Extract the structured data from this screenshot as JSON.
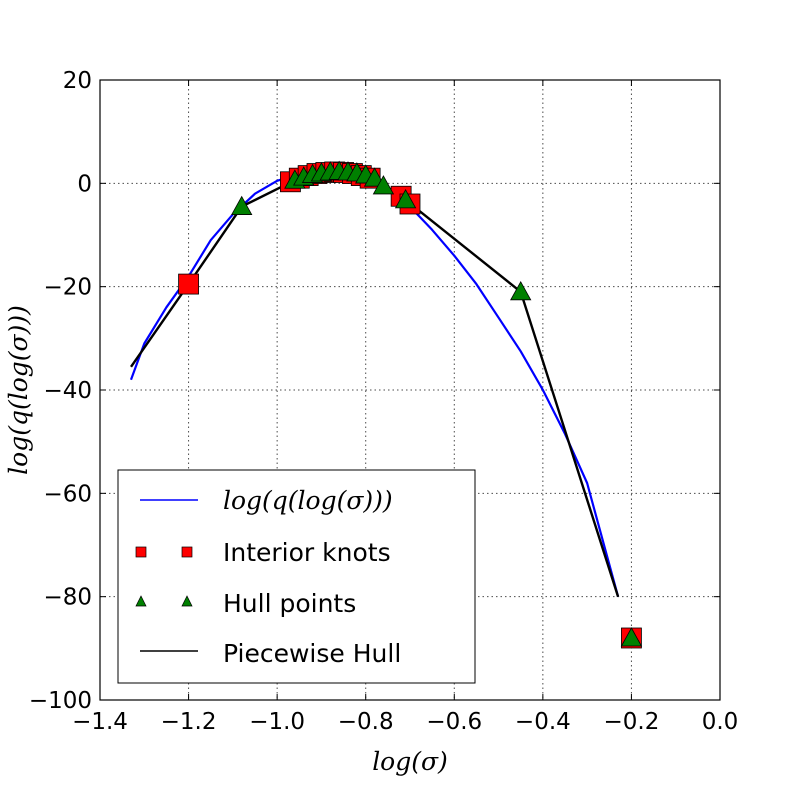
{
  "chart_data": {
    "type": "line",
    "xlabel": "log(σ)",
    "ylabel": "log(q(log(σ)))",
    "xlim": [
      -1.4,
      0.0
    ],
    "ylim": [
      -100,
      20
    ],
    "xticks": [
      -1.4,
      -1.2,
      -1.0,
      -0.8,
      -0.6,
      -0.4,
      -0.2,
      0.0
    ],
    "yticks": [
      -100,
      -80,
      -60,
      -40,
      -20,
      0,
      20
    ],
    "xtick_labels": [
      "−1.4",
      "−1.2",
      "−1.0",
      "−0.8",
      "−0.6",
      "−0.4",
      "−0.2",
      "0.0"
    ],
    "ytick_labels": [
      "−100",
      "−80",
      "−60",
      "−40",
      "−20",
      "0",
      "20"
    ],
    "grid": true,
    "legend_position": "lower-left",
    "series": [
      {
        "name": "log(q(log(σ)))",
        "kind": "line",
        "color": "#0000ff",
        "x": [
          -1.33,
          -1.3,
          -1.25,
          -1.2,
          -1.15,
          -1.1,
          -1.05,
          -1.0,
          -0.95,
          -0.9,
          -0.87,
          -0.84,
          -0.8,
          -0.75,
          -0.7,
          -0.65,
          -0.6,
          -0.55,
          -0.5,
          -0.45,
          -0.4,
          -0.35,
          -0.3,
          -0.23
        ],
        "y": [
          -38,
          -31,
          -24,
          -18,
          -11,
          -6,
          -2,
          0.5,
          1.8,
          2.3,
          2.5,
          2.3,
          1.5,
          -1,
          -4.5,
          -9,
          -14,
          -19.5,
          -26,
          -32.5,
          -40,
          -48.5,
          -58,
          -80
        ]
      },
      {
        "name": "Interior knots",
        "kind": "scatter",
        "marker": "square",
        "color": "#ff0000",
        "x": [
          -1.2,
          -0.97,
          -0.95,
          -0.93,
          -0.91,
          -0.89,
          -0.87,
          -0.85,
          -0.83,
          -0.81,
          -0.79,
          -0.72,
          -0.7,
          -0.2
        ],
        "y": [
          -19.5,
          0.3,
          1.0,
          1.5,
          1.9,
          2.1,
          2.2,
          2.1,
          1.9,
          1.5,
          1.0,
          -2.5,
          -4.0,
          -88
        ]
      },
      {
        "name": "Hull points",
        "kind": "scatter",
        "marker": "triangle",
        "color": "#008000",
        "x": [
          -1.08,
          -0.96,
          -0.94,
          -0.92,
          -0.9,
          -0.88,
          -0.86,
          -0.84,
          -0.82,
          -0.8,
          -0.78,
          -0.76,
          -0.71,
          -0.45,
          -0.2
        ],
        "y": [
          -4.5,
          0.6,
          1.2,
          1.7,
          2.0,
          2.2,
          2.3,
          2.2,
          2.0,
          1.6,
          1.0,
          -0.5,
          -3.2,
          -21,
          -88
        ]
      },
      {
        "name": "Piecewise Hull",
        "kind": "line",
        "color": "#000000",
        "x": [
          -1.33,
          -1.2,
          -1.08,
          -0.96,
          -0.9,
          -0.84,
          -0.78,
          -0.71,
          -0.45,
          -0.23
        ],
        "y": [
          -35.5,
          -19.5,
          -4.5,
          0.6,
          2.0,
          2.2,
          1.0,
          -3.2,
          -21,
          -80
        ]
      }
    ]
  }
}
